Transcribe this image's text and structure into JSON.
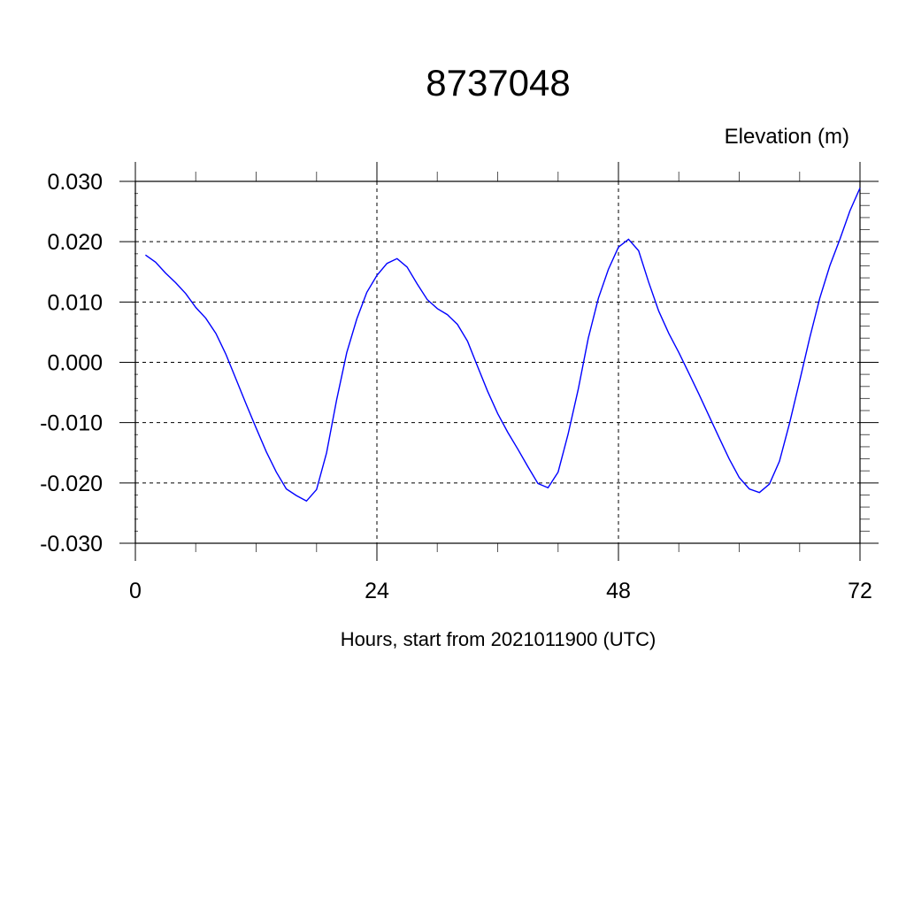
{
  "chart_data": {
    "type": "line",
    "title": "8737048",
    "ylabel": "Elevation (m)",
    "xlabel": "Hours, start from 2021011900 (UTC)",
    "xlim": [
      0,
      72
    ],
    "ylim": [
      -0.03,
      0.03
    ],
    "x_ticks": [
      0,
      24,
      48,
      72
    ],
    "x_tick_labels": [
      "0",
      "24",
      "48",
      "72"
    ],
    "y_ticks": [
      0.03,
      0.02,
      0.01,
      0.0,
      -0.01,
      -0.02,
      -0.03
    ],
    "y_tick_labels": [
      "0.030",
      "0.020",
      "0.010",
      "0.000",
      "-0.010",
      "-0.020",
      "-0.030"
    ],
    "grid": true,
    "series": [
      {
        "color": "#0000ff",
        "x": [
          1,
          2,
          3,
          4,
          5,
          6,
          7,
          8,
          9,
          10,
          11,
          12,
          13,
          14,
          15,
          16,
          17,
          18,
          19,
          20,
          21,
          22,
          23,
          24,
          25,
          26,
          27,
          28,
          29,
          30,
          31,
          32,
          33,
          34,
          35,
          36,
          37,
          38,
          39,
          40,
          41,
          42,
          43,
          44,
          45,
          46,
          47,
          48,
          49,
          50,
          51,
          52,
          53,
          54,
          55,
          56,
          57,
          58,
          59,
          60,
          61,
          62,
          63,
          64,
          65,
          66,
          67,
          68,
          69,
          70,
          71,
          72
        ],
        "values": [
          0.0178,
          0.0166,
          0.0148,
          0.0132,
          0.0114,
          0.0091,
          0.0073,
          0.0048,
          0.0013,
          -0.0028,
          -0.0069,
          -0.0109,
          -0.0148,
          -0.0182,
          -0.021,
          -0.0221,
          -0.023,
          -0.0211,
          -0.015,
          -0.0062,
          0.0016,
          0.0072,
          0.0116,
          0.0144,
          0.0164,
          0.0172,
          0.0158,
          0.013,
          0.0104,
          0.0089,
          0.0079,
          0.0063,
          0.0035,
          -0.0007,
          -0.0048,
          -0.0085,
          -0.0116,
          -0.0144,
          -0.0173,
          -0.0201,
          -0.0208,
          -0.0182,
          -0.0119,
          -0.0045,
          0.004,
          0.0106,
          0.0154,
          0.0191,
          0.0204,
          0.0185,
          0.0133,
          0.0085,
          0.0048,
          0.0016,
          -0.0018,
          -0.0053,
          -0.0089,
          -0.0125,
          -0.016,
          -0.0191,
          -0.021,
          -0.0216,
          -0.0202,
          -0.0164,
          -0.0101,
          -0.0031,
          0.004,
          0.0106,
          0.016,
          0.0204,
          0.0251,
          0.0289
        ]
      }
    ]
  }
}
